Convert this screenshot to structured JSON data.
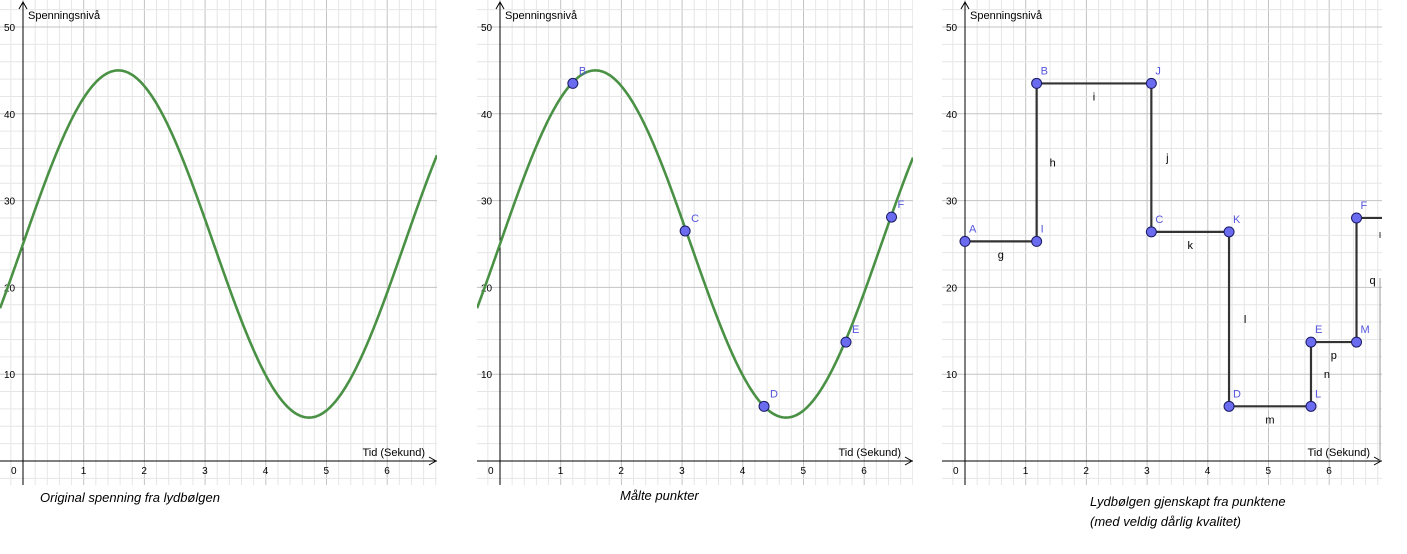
{
  "charts": {
    "ylabel": "Spenningsnivå",
    "xlabel": "Tid (Sekund)",
    "y_ticks": [
      "10",
      "20",
      "30",
      "40",
      "50"
    ],
    "x_ticks": [
      "0",
      "1",
      "2",
      "3",
      "4",
      "5",
      "6"
    ]
  },
  "captions": {
    "original": "Original spenning fra lydbølgen",
    "measured": "Målte punkter",
    "reconstructed_line1": "Lydbølgen gjenskapt fra punktene",
    "reconstructed_line2": "(med veldig dårlig kvalitet)"
  },
  "chart_data": [
    {
      "type": "line",
      "title": "",
      "xlabel": "Tid (Sekund)",
      "ylabel": "Spenningsnivå",
      "xlim": [
        -0.2,
        6.8
      ],
      "ylim": [
        -1.5,
        52
      ],
      "grid": true,
      "series": [
        {
          "x": [
            -0.2,
            0,
            0.5,
            1,
            1.5,
            1.6,
            2,
            2.5,
            3,
            3.5,
            4,
            4.5,
            4.7,
            5,
            5.5,
            6,
            6.5,
            6.8
          ],
          "y": [
            17.6,
            25.0,
            34.6,
            41.8,
            44.9,
            45.0,
            43.1,
            37.1,
            28.0,
            18.5,
            10.1,
            5.4,
            5.0,
            5.9,
            10.6,
            18.5,
            28.0,
            35.5
          ]
        }
      ],
      "color": "#4a9145"
    },
    {
      "type": "scatter",
      "title": "",
      "xlabel": "Tid (Sekund)",
      "ylabel": "Spenningsnivå",
      "xlim": [
        -0.2,
        6.8
      ],
      "ylim": [
        -1.5,
        52
      ],
      "grid": true,
      "curve": {
        "x": [
          -0.2,
          0,
          0.5,
          1,
          1.5,
          1.6,
          2,
          2.5,
          3,
          3.5,
          4,
          4.5,
          4.7,
          5,
          5.5,
          6,
          6.5,
          6.8
        ],
        "y": [
          17.6,
          25.0,
          34.6,
          41.8,
          44.9,
          45.0,
          43.1,
          37.1,
          28.0,
          18.5,
          10.1,
          5.4,
          5.0,
          5.9,
          10.6,
          18.5,
          28.0,
          35.5
        ]
      },
      "points": [
        {
          "label": "B",
          "x": 1.2,
          "y": 43.5
        },
        {
          "label": "C",
          "x": 3.05,
          "y": 26.5
        },
        {
          "label": "D",
          "x": 4.35,
          "y": 6.3
        },
        {
          "label": "E",
          "x": 5.7,
          "y": 13.7
        },
        {
          "label": "F",
          "x": 6.45,
          "y": 28.1
        }
      ],
      "color": "#4a9145",
      "point_color": "#6b6bf0"
    },
    {
      "type": "line",
      "title": "",
      "xlabel": "Tid (Sekund)",
      "ylabel": "Spenningsnivå",
      "xlim": [
        -0.2,
        6.8
      ],
      "ylim": [
        -1.5,
        52
      ],
      "grid": true,
      "points": [
        {
          "label": "A",
          "x": 0,
          "y": 25.3
        },
        {
          "label": "I",
          "x": 1.18,
          "y": 25.3
        },
        {
          "label": "B",
          "x": 1.18,
          "y": 43.5
        },
        {
          "label": "J",
          "x": 3.07,
          "y": 43.5
        },
        {
          "label": "C",
          "x": 3.07,
          "y": 26.4
        },
        {
          "label": "K",
          "x": 4.35,
          "y": 26.4
        },
        {
          "label": "D",
          "x": 4.35,
          "y": 6.3
        },
        {
          "label": "L",
          "x": 5.7,
          "y": 6.3
        },
        {
          "label": "E",
          "x": 5.7,
          "y": 13.7
        },
        {
          "label": "M",
          "x": 6.45,
          "y": 13.7
        },
        {
          "label": "F",
          "x": 6.45,
          "y": 28.0
        }
      ],
      "segments": [
        {
          "label": "g",
          "from": "A",
          "to": "I"
        },
        {
          "label": "h",
          "from": "I",
          "to": "B"
        },
        {
          "label": "i",
          "from": "B",
          "to": "J"
        },
        {
          "label": "j",
          "from": "J",
          "to": "C"
        },
        {
          "label": "k",
          "from": "C",
          "to": "K"
        },
        {
          "label": "l",
          "from": "K",
          "to": "D"
        },
        {
          "label": "m",
          "from": "D",
          "to": "L"
        },
        {
          "label": "n",
          "from": "L",
          "to": "E"
        },
        {
          "label": "p",
          "from": "E",
          "to": "M"
        },
        {
          "label": "q",
          "from": "M",
          "to": "F"
        }
      ],
      "line_color": "#333333",
      "point_color": "#6b6bf0"
    }
  ]
}
